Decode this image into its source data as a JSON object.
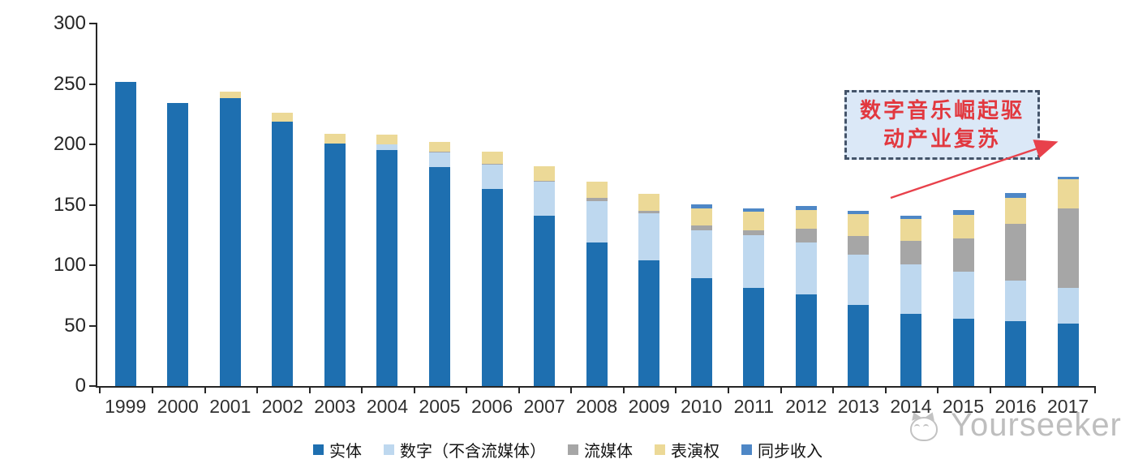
{
  "chart_data": {
    "type": "bar",
    "stacked": true,
    "title": "",
    "xlabel": "",
    "ylabel": "",
    "categories": [
      "1999",
      "2000",
      "2001",
      "2002",
      "2003",
      "2004",
      "2005",
      "2006",
      "2007",
      "2008",
      "2009",
      "2010",
      "2011",
      "2012",
      "2013",
      "2014",
      "2015",
      "2016",
      "2017"
    ],
    "series": [
      {
        "key": "physical",
        "name": "实体",
        "color": "#1e6fb0",
        "values": [
          252,
          234,
          238,
          219,
          201,
          195,
          181,
          163,
          141,
          119,
          104,
          89,
          81,
          76,
          67,
          60,
          56,
          54,
          52
        ]
      },
      {
        "key": "digital",
        "name": "数字（不含流媒体）",
        "color": "#bed8ef",
        "values": [
          0,
          0,
          0,
          0,
          0,
          5,
          12,
          20,
          28,
          34,
          39,
          40,
          44,
          43,
          42,
          41,
          39,
          33,
          29
        ]
      },
      {
        "key": "streaming",
        "name": "流媒体",
        "color": "#a6a6a6",
        "values": [
          0,
          0,
          0,
          0,
          0,
          0,
          1,
          1,
          1,
          3,
          2,
          4,
          4,
          11,
          15,
          19,
          27,
          47,
          66
        ]
      },
      {
        "key": "performance",
        "name": "表演权",
        "color": "#ecd997",
        "values": [
          0,
          0,
          6,
          7,
          8,
          8,
          8,
          10,
          12,
          13,
          14,
          14,
          15,
          16,
          18,
          18,
          20,
          22,
          24
        ]
      },
      {
        "key": "sync",
        "name": "同步收入",
        "color": "#4e87c6",
        "values": [
          0,
          0,
          0,
          0,
          0,
          0,
          0,
          0,
          0,
          0,
          0,
          3,
          3,
          3,
          3,
          3,
          4,
          4,
          2
        ]
      }
    ],
    "ylim": [
      0,
      300
    ],
    "yticks": [
      0,
      50,
      100,
      150,
      200,
      250,
      300
    ],
    "legend_position": "bottom",
    "grid": false
  },
  "annotation": {
    "line1": "数字音乐崛起驱",
    "line2": "动产业复苏",
    "box_fill": "#dbe8f7",
    "border_color": "#44546a",
    "text_color": "#e2383f",
    "arrow_color": "#e8414b"
  },
  "watermark": {
    "text": "Yourseeker"
  }
}
